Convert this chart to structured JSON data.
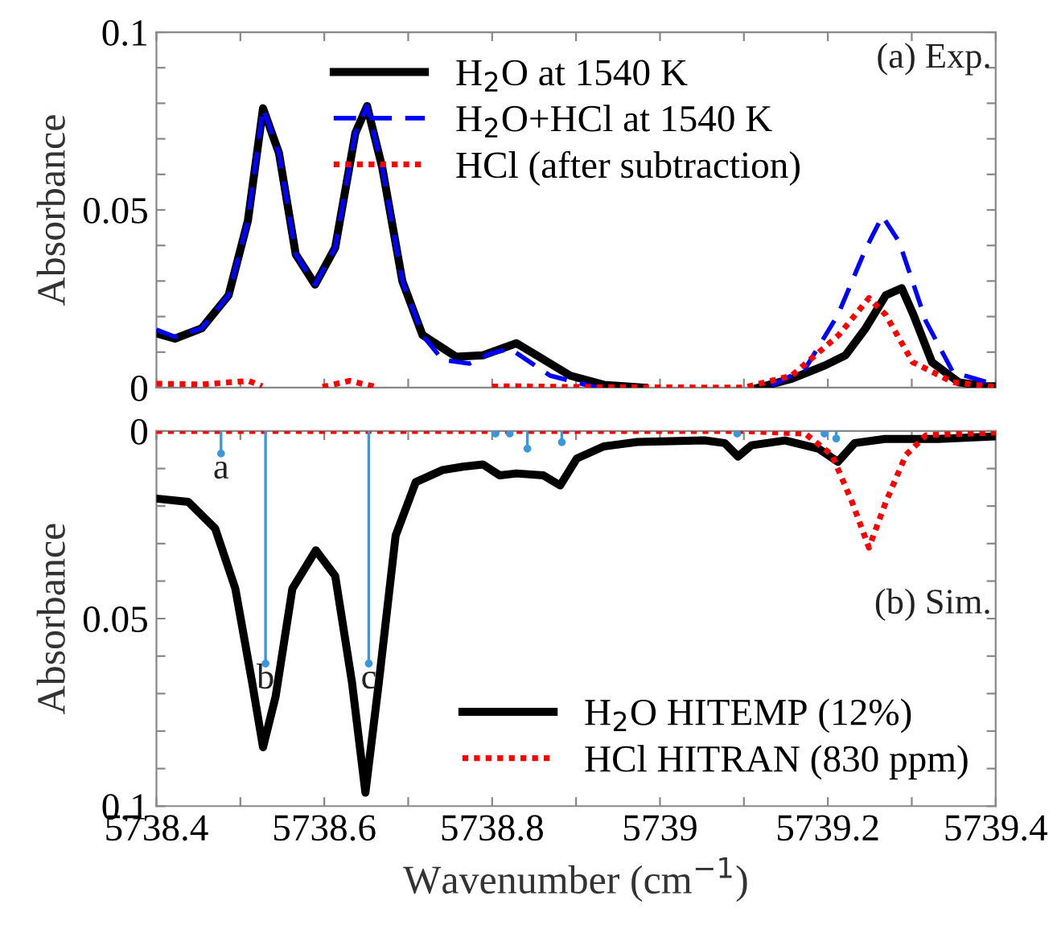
{
  "chart_data": [
    {
      "type": "line",
      "ylabel": "Absorbance",
      "xlim": [
        5738.4,
        5739.4
      ],
      "ylim": [
        0,
        0.1
      ],
      "xticks": [
        {
          "value": 5738.4,
          "label": null
        },
        {
          "value": 5738.5,
          "label": null
        },
        {
          "value": 5738.6,
          "label": null
        },
        {
          "value": 5738.7,
          "label": null
        },
        {
          "value": 5738.8,
          "label": null
        },
        {
          "value": 5738.9,
          "label": null
        },
        {
          "value": 5739,
          "label": null
        },
        {
          "value": 5739.1,
          "label": null
        },
        {
          "value": 5739.2,
          "label": null
        },
        {
          "value": 5739.3,
          "label": null
        },
        {
          "value": 5739.4,
          "label": null
        }
      ],
      "yticks": [
        0,
        {
          "value": 0.01,
          "label": null
        },
        {
          "value": 0.02,
          "label": null
        },
        {
          "value": 0.03,
          "label": null
        },
        {
          "value": 0.04,
          "label": null
        },
        0.05,
        {
          "value": 0.06,
          "label": null
        },
        {
          "value": 0.07,
          "label": null
        },
        {
          "value": 0.08,
          "label": null
        },
        {
          "value": 0.09,
          "label": null
        },
        0.1
      ],
      "tick_labels": "y",
      "legend": "top right",
      "grid": false,
      "annotations": [
        "(a) Exp."
      ],
      "series": [
        {
          "name": "H$_{2}$O at 1540 K",
          "color": "#000000",
          "line_style": "solid",
          "x": [
            5738.4,
            5738.422,
            5738.454,
            5738.486,
            5738.509,
            5738.527,
            5738.546,
            5738.566,
            5738.589,
            5738.613,
            5738.637,
            5738.651,
            5738.669,
            5738.693,
            5738.717,
            5738.757,
            5738.789,
            5738.829,
            5738.853,
            5738.893,
            5738.933,
            5738.981,
            5739.1,
            5739.117,
            5739.157,
            5739.197,
            5739.221,
            5739.245,
            5739.269,
            5739.288,
            5739.302,
            5739.324,
            5739.356,
            5739.388,
            5739.4
          ],
          "values": [
            0.0153,
            0.0138,
            0.0167,
            0.026,
            0.047,
            0.0786,
            0.066,
            0.0375,
            0.029,
            0.0394,
            0.0716,
            0.0792,
            0.062,
            0.03,
            0.0148,
            0.0087,
            0.0091,
            0.0125,
            0.0091,
            0.0034,
            0.0008,
            0,
            null,
            0,
            0.0025,
            0.0063,
            0.0091,
            0.0167,
            0.026,
            0.028,
            0.0205,
            0.0072,
            0.0015,
            0.0004,
            0.0004
          ]
        },
        {
          "name": "H$_{2}$O+HCl at 1540 K",
          "color": "#0000ff",
          "line_style": "dashed",
          "x": [
            5738.4,
            5738.422,
            5738.454,
            5738.486,
            5738.509,
            5738.527,
            5738.546,
            5738.566,
            5738.589,
            5738.613,
            5738.637,
            5738.651,
            5738.669,
            5738.693,
            5738.717,
            5738.741,
            5738.773,
            5738.797,
            5738.821,
            5738.869,
            5738.925,
            5739.1,
            5739.133,
            5739.173,
            5739.212,
            5739.245,
            5739.265,
            5739.285,
            5739.317,
            5739.349,
            5739.4
          ],
          "values": [
            0.0163,
            0.0143,
            0.0167,
            0.026,
            0.047,
            0.0786,
            0.066,
            0.0375,
            0.029,
            0.0394,
            0.0716,
            0.0792,
            0.062,
            0.03,
            0.0148,
            0.0078,
            0.0068,
            0.0095,
            0.011,
            0.0034,
            0,
            null,
            0.0006,
            0.0053,
            0.0205,
            0.039,
            0.0483,
            0.041,
            0.0186,
            0.0044,
            0.0008
          ]
        },
        {
          "name": "HCl (after subtraction)",
          "color": "#ff0000",
          "line_style": "dotted",
          "x": [
            5738.4,
            5738.454,
            5738.51,
            5738.526,
            5738.527,
            5738.598,
            5738.63,
            5738.662,
            5738.663,
            5738.8,
            5738.827,
            5738.861,
            5738.888,
            5739.1,
            5739.157,
            5739.213,
            5739.249,
            5739.269,
            5739.301,
            5739.349,
            5739.4
          ],
          "values": [
            0.0011,
            0.0009,
            0.0019,
            0.0004,
            null,
            0.0002,
            0.0019,
            0.0002,
            null,
            0.0003,
            0.0004,
            0.0003,
            0.0002,
            0,
            0.0034,
            0.0148,
            0.0252,
            0.0205,
            0.0072,
            0.0015,
            0.0002
          ]
        }
      ]
    },
    {
      "type": "line",
      "ylabel": "Absorbance",
      "xlabel": "Wavenumber (cm$^{−1}$)",
      "xlim": [
        5738.4,
        5739.4
      ],
      "ylim": [
        0.1,
        0
      ],
      "xticks": [
        5738.4,
        {
          "value": 5738.5,
          "label": null
        },
        5738.6,
        {
          "value": 5738.7,
          "label": null
        },
        5738.8,
        {
          "value": 5738.9,
          "label": null
        },
        5739,
        {
          "value": 5739.1,
          "label": null
        },
        5739.2,
        {
          "value": 5739.3,
          "label": null
        },
        5739.4
      ],
      "yticks": [
        0,
        {
          "value": 0.01,
          "label": null
        },
        {
          "value": 0.02,
          "label": null
        },
        {
          "value": 0.03,
          "label": null
        },
        {
          "value": 0.04,
          "label": null
        },
        0.05,
        {
          "value": 0.06,
          "label": null
        },
        {
          "value": 0.07,
          "label": null
        },
        {
          "value": 0.08,
          "label": null
        },
        {
          "value": 0.09,
          "label": null
        },
        0.1
      ],
      "legend": "bottom right",
      "grid": false,
      "annotations": [
        "(b) Sim.",
        {
          "text": "a",
          "x": 5738.477,
          "y": 0.006
        },
        {
          "text": "b",
          "x": 5738.53,
          "y": 0.062
        },
        {
          "text": "c",
          "x": 5738.653,
          "y": 0.062
        }
      ],
      "series": [
        {
          "type": "lollipop",
          "color": "#3a96dd",
          "x": [
            5738.477,
            5738.53,
            5738.653,
            5738.804,
            5738.821,
            5738.842,
            5738.883,
            5739.092,
            5739.196,
            5739.21
          ],
          "values": [
            0.006,
            0.062,
            0.062,
            0.0007,
            0.0007,
            0.0047,
            0.003,
            0.0007,
            0.0007,
            0.002
          ]
        },
        {
          "name": "H$_{2}$O HITEMP (12%)",
          "color": "#000000",
          "line_style": "solid",
          "x": [
            5738.4,
            5738.438,
            5738.47,
            5738.494,
            5738.514,
            5738.527,
            5738.542,
            5738.562,
            5738.59,
            5738.613,
            5738.633,
            5738.649,
            5738.665,
            5738.685,
            5738.709,
            5738.741,
            5738.765,
            5738.789,
            5738.809,
            5738.829,
            5738.861,
            5738.881,
            5738.901,
            5738.933,
            5738.973,
            5739.053,
            5739.077,
            5739.093,
            5739.109,
            5739.149,
            5739.189,
            5739.212,
            5739.232,
            5739.268,
            5739.332,
            5739.4
          ],
          "values": [
            0.018,
            0.0189,
            0.026,
            0.042,
            0.067,
            0.0843,
            0.0708,
            0.042,
            0.0318,
            0.0386,
            0.067,
            0.0964,
            0.067,
            0.0279,
            0.0136,
            0.0104,
            0.0095,
            0.0089,
            0.0118,
            0.0113,
            0.0118,
            0.0145,
            0.0073,
            0.0041,
            0.0029,
            0.0025,
            0.0032,
            0.0068,
            0.0038,
            0.0025,
            0.0047,
            0.0082,
            0.0032,
            0.0021,
            0.0021,
            0.0014
          ]
        },
        {
          "name": "HCl HITRAN (830 ppm)",
          "color": "#ff0000",
          "line_style": "dotted",
          "x": [
            5738.4,
            5739.1,
            5739.173,
            5739.205,
            5739.229,
            5739.249,
            5739.269,
            5739.293,
            5739.317,
            5739.4
          ],
          "values": [
            0,
            0,
            0.0007,
            0.0064,
            0.019,
            0.0311,
            0.019,
            0.0064,
            0.0011,
            0.0004
          ]
        }
      ]
    }
  ]
}
